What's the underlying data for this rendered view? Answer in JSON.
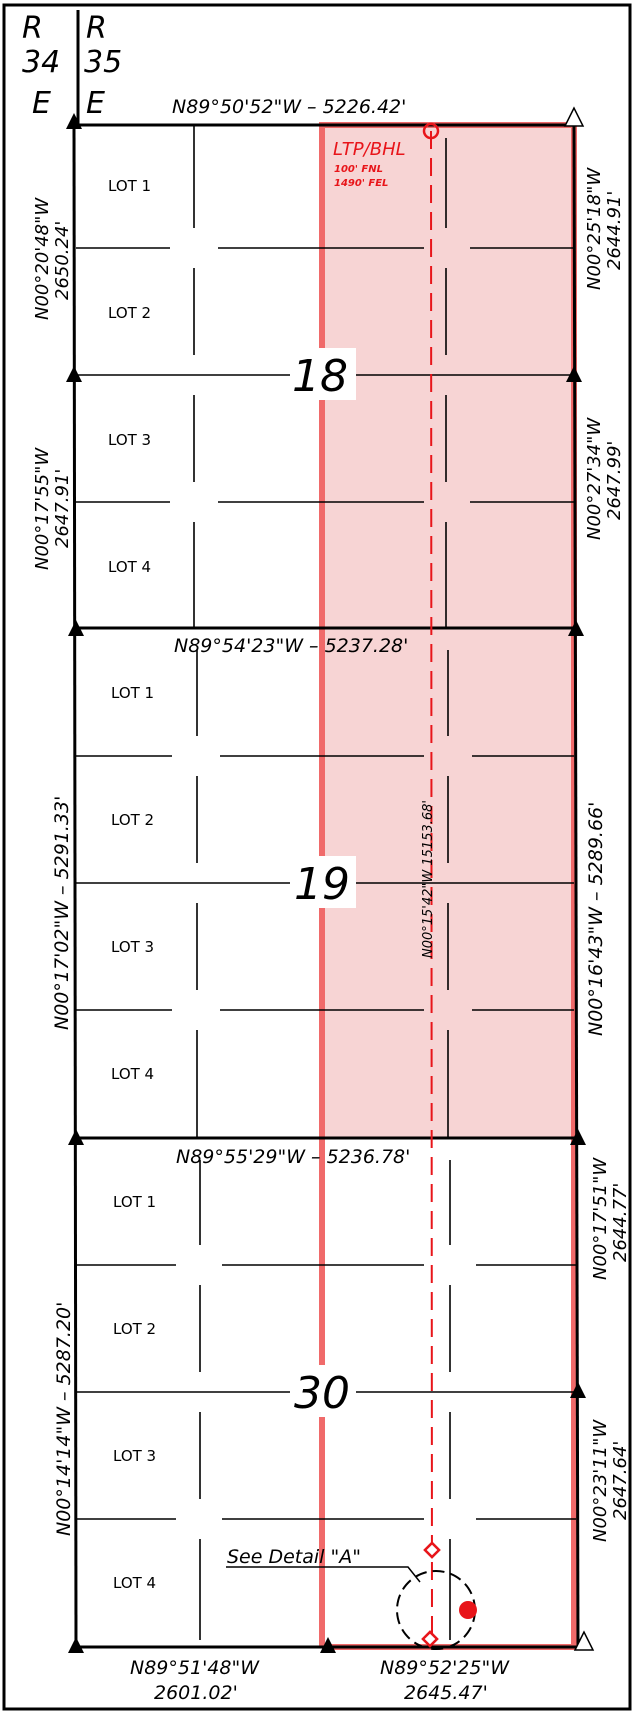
{
  "range_header": {
    "left_r": "R",
    "left_num": "34",
    "left_e": "E",
    "right_r": "R",
    "right_num": "35",
    "right_e": "E"
  },
  "sections": [
    {
      "number": "18",
      "lots": [
        "LOT 1",
        "LOT 2",
        "LOT 3",
        "LOT 4"
      ]
    },
    {
      "number": "19",
      "lots": [
        "LOT 1",
        "LOT 2",
        "LOT 3",
        "LOT 4"
      ]
    },
    {
      "number": "30",
      "lots": [
        "LOT 1",
        "LOT 2",
        "LOT 3",
        "LOT 4"
      ]
    }
  ],
  "bearings": {
    "top": "N89°50'52\"W – 5226.42'",
    "sec18_19_line": "N89°54'23\"W – 5237.28'",
    "sec19_30_line": "N89°55'29\"W – 5236.78'",
    "bottom_left_bearing": "N89°51'48\"W",
    "bottom_left_dist": "2601.02'",
    "bottom_right_bearing": "N89°52'25\"W",
    "bottom_right_dist": "2645.47'",
    "west18_top_bearing": "N00°20'48\"W",
    "west18_top_dist": "2650.24'",
    "west18_bottom_bearing": "N00°17'55\"W",
    "west18_bottom_dist": "2647.91'",
    "east18_top_bearing": "N00°25'18\"W",
    "east18_top_dist": "2644.91'",
    "east18_bottom_bearing": "N00°27'34\"W",
    "east18_bottom_dist": "2647.99'",
    "west19": "N00°17'02\"W – 5291.33'",
    "east19": "N00°16'43\"W – 5289.66'",
    "west30": "N00°14'14\"W – 5287.20'",
    "east30_top_bearing": "N00°17'51\"W",
    "east30_top_dist": "2644.77'",
    "east30_bottom_bearing": "N00°23'11\"W",
    "east30_bottom_dist": "2647.64'",
    "wellbore": "N00°15'42\"W 15153.68'"
  },
  "ltp": {
    "label": "LTP/BHL",
    "fnl": "100' FNL",
    "fel": "1490' FEL"
  },
  "detail_label": "See Detail \"A\"",
  "colors": {
    "spacing_fill": "#f7d4d4",
    "spacing_border": "#f06a6a",
    "wellbore": "#e8151a",
    "line": "#000000"
  }
}
